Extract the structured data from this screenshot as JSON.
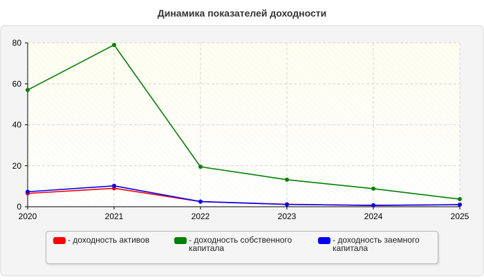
{
  "chart_data": {
    "type": "line",
    "title": "Динамика показателей доходности",
    "x": [
      "2020",
      "2021",
      "2022",
      "2023",
      "2024",
      "2025"
    ],
    "ylim": [
      0,
      80
    ],
    "yticks": [
      "0",
      "20",
      "40",
      "60",
      "80"
    ],
    "grid": true,
    "legend_position": "bottom",
    "series": [
      {
        "name": "доходность активов",
        "legend_label": "- доходность активов",
        "color": "#ff0000",
        "values": [
          6.5,
          9.0,
          2.5,
          1.2,
          0.6,
          1.0
        ]
      },
      {
        "name": "доходность собственного капитала",
        "legend_label": "- доходность собственного капитала",
        "color": "#008000",
        "values": [
          57,
          79,
          19.5,
          13.2,
          8.8,
          3.7
        ]
      },
      {
        "name": "доходность заемного капитала",
        "legend_label": "- доходность заемного капитала",
        "color": "#0000ff",
        "values": [
          7.3,
          10.2,
          2.5,
          1.1,
          0.7,
          1.0
        ]
      }
    ]
  }
}
